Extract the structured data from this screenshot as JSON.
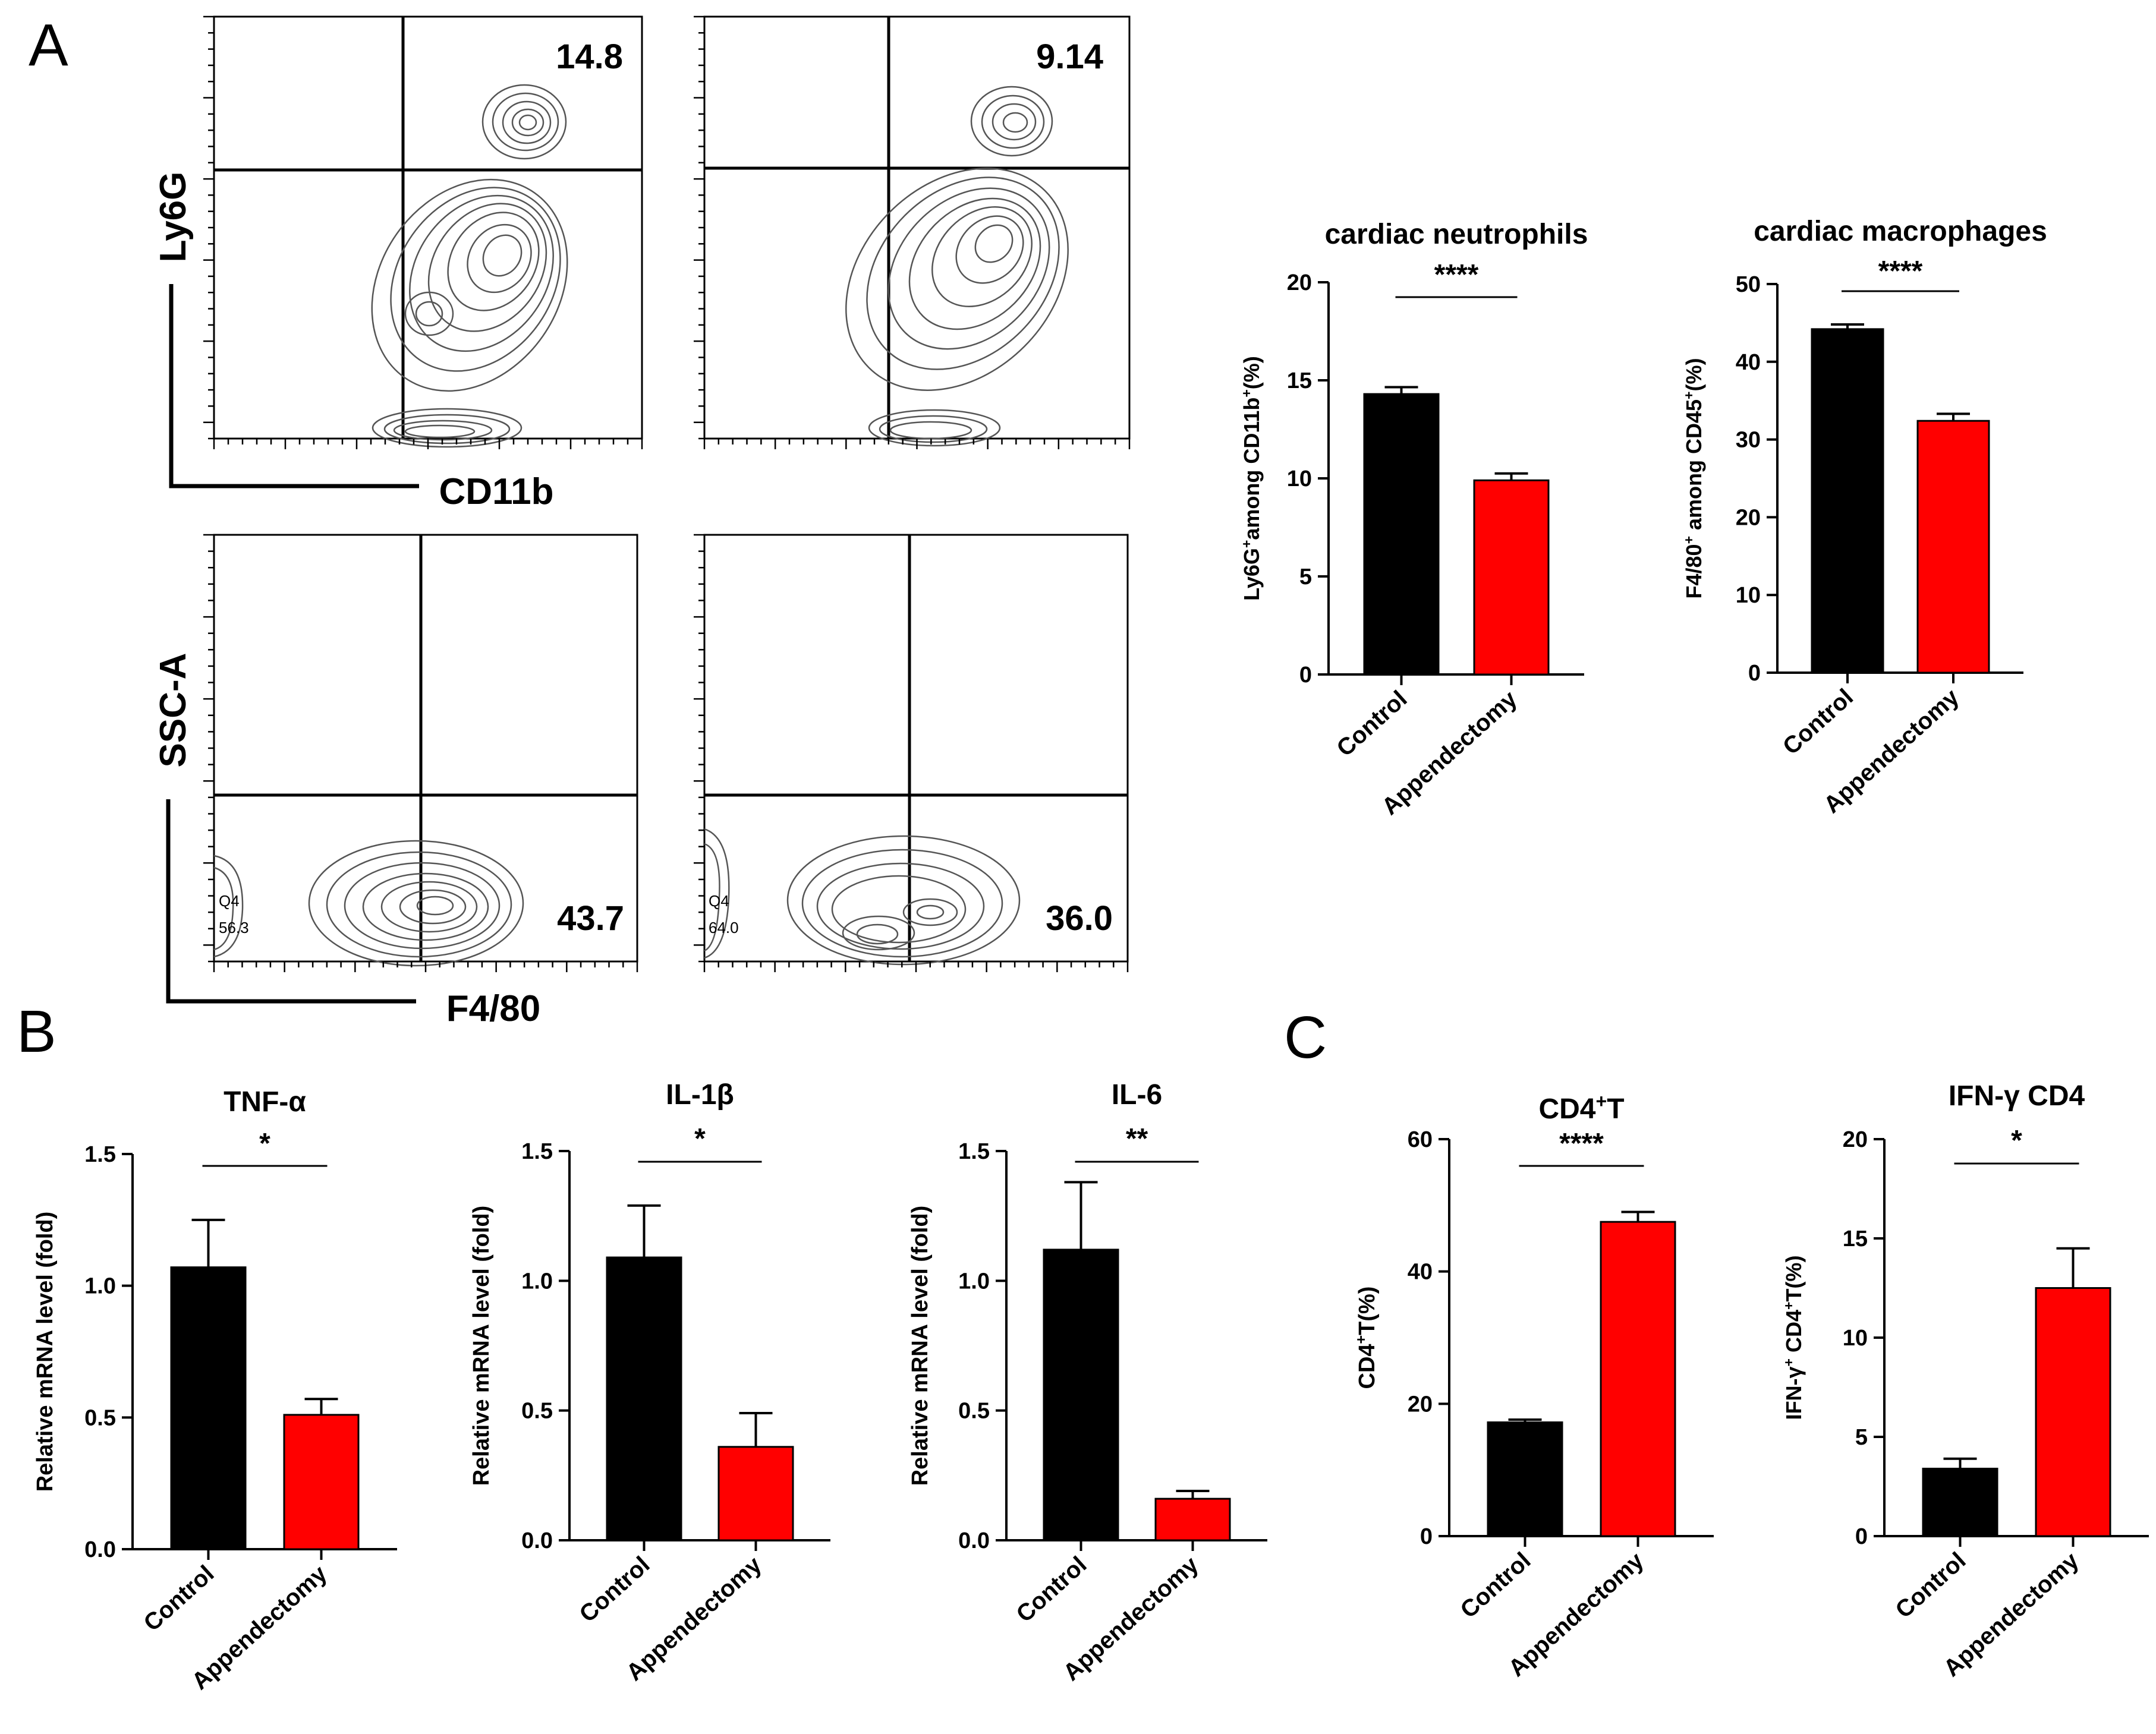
{
  "panel_labels": {
    "a": "A",
    "b": "B",
    "c": "C"
  },
  "flow": {
    "ly6g_axis_y": "Ly6G",
    "ly6g_axis_x": "CD11b",
    "ly6g_control_value": "14.8",
    "ly6g_append_value": "9.14",
    "ssc_axis_y": "SSC-A",
    "ssc_axis_x": "F4/80",
    "f480_control_value": "43.7",
    "f480_append_value": "36.0",
    "f480_control_q4_label": "Q4",
    "f480_control_q4_value": "56.3",
    "f480_append_q4_label": "Q4",
    "f480_append_q4_value": "64.0"
  },
  "colors": {
    "control": "#000000",
    "appendectomy": "#ff0000"
  },
  "chart_data": [
    {
      "type": "bar",
      "id": "neutrophils",
      "title": "cardiac neutrophils",
      "ylabel_parts": [
        [
          "Ly6G",
          "+",
          "among CD11b",
          "+",
          "(%)"
        ]
      ],
      "categories": [
        "Control",
        "Appendectomy"
      ],
      "values": [
        14.3,
        9.9
      ],
      "errors": [
        0.35,
        0.35
      ],
      "ylim": [
        0,
        20
      ],
      "ticks": [
        0,
        5,
        10,
        15,
        20
      ],
      "tick_labels": [
        "0",
        "5",
        "10",
        "15",
        "20"
      ],
      "significance": "****"
    },
    {
      "type": "bar",
      "id": "macrophages",
      "title": "cardiac macrophages",
      "ylabel_parts": [
        [
          "F4/80",
          "+",
          " among CD45",
          "+",
          "(%)"
        ]
      ],
      "categories": [
        "Control",
        "Appendectomy"
      ],
      "values": [
        44.2,
        32.4
      ],
      "errors": [
        0.6,
        0.9
      ],
      "ylim": [
        0,
        50
      ],
      "ticks": [
        0,
        10,
        20,
        30,
        40,
        50
      ],
      "tick_labels": [
        "0",
        "10",
        "20",
        "30",
        "40",
        "50"
      ],
      "significance": "****"
    },
    {
      "type": "bar",
      "id": "tnf",
      "title": "TNF-α",
      "ylabel_parts": [
        [
          "Relative mRNA level (fold)"
        ]
      ],
      "categories": [
        "Control",
        "Appendectomy"
      ],
      "values": [
        1.07,
        0.51
      ],
      "errors": [
        0.18,
        0.06
      ],
      "ylim": [
        0,
        1.5
      ],
      "ticks": [
        0,
        0.5,
        1.0,
        1.5
      ],
      "tick_labels": [
        "0.0",
        "0.5",
        "1.0",
        "1.5"
      ],
      "significance": "*"
    },
    {
      "type": "bar",
      "id": "il1b",
      "title": "IL-1β",
      "ylabel_parts": [
        [
          "Relative mRNA level (fold)"
        ]
      ],
      "categories": [
        "Control",
        "Appendectomy"
      ],
      "values": [
        1.09,
        0.36
      ],
      "errors": [
        0.2,
        0.13
      ],
      "ylim": [
        0,
        1.5
      ],
      "ticks": [
        0,
        0.5,
        1.0,
        1.5
      ],
      "tick_labels": [
        "0.0",
        "0.5",
        "1.0",
        "1.5"
      ],
      "significance": "*"
    },
    {
      "type": "bar",
      "id": "il6",
      "title": "IL-6",
      "ylabel_parts": [
        [
          "Relative mRNA level (fold)"
        ]
      ],
      "categories": [
        "Control",
        "Appendectomy"
      ],
      "values": [
        1.12,
        0.16
      ],
      "errors": [
        0.26,
        0.03
      ],
      "ylim": [
        0,
        1.5
      ],
      "ticks": [
        0,
        0.5,
        1.0,
        1.5
      ],
      "tick_labels": [
        "0.0",
        "0.5",
        "1.0",
        "1.5"
      ],
      "significance": "**"
    },
    {
      "type": "bar",
      "id": "cd4",
      "title_parts": [
        "CD4",
        "+",
        "T"
      ],
      "ylabel_parts": [
        [
          "CD4",
          "+",
          "T(%)"
        ]
      ],
      "categories": [
        "Control",
        "Appendectomy"
      ],
      "values": [
        17.2,
        47.5
      ],
      "errors": [
        0.4,
        1.5
      ],
      "ylim": [
        0,
        60
      ],
      "ticks": [
        0,
        20,
        40,
        60
      ],
      "tick_labels": [
        "0",
        "20",
        "40",
        "60"
      ],
      "significance": "****"
    },
    {
      "type": "bar",
      "id": "ifng",
      "title": "IFN-γ CD4",
      "ylabel_parts": [
        [
          "IFN-γ",
          "+",
          " CD4",
          "+",
          "T(%)"
        ]
      ],
      "categories": [
        "Control",
        "Appendectomy"
      ],
      "values": [
        3.4,
        12.5
      ],
      "errors": [
        0.5,
        2.0
      ],
      "ylim": [
        0,
        20
      ],
      "ticks": [
        0,
        5,
        10,
        15,
        20
      ],
      "tick_labels": [
        "0",
        "5",
        "10",
        "15",
        "20"
      ],
      "significance": "*"
    }
  ]
}
